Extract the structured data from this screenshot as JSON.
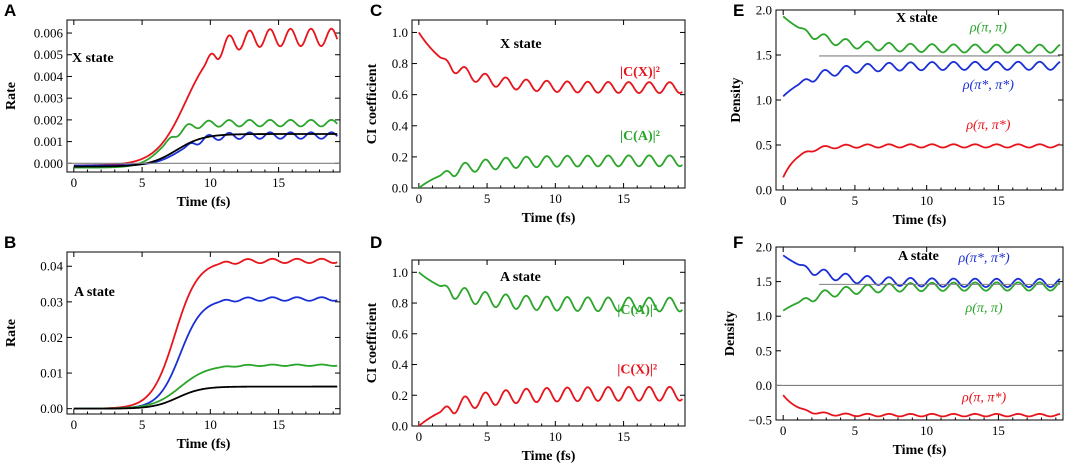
{
  "colors": {
    "red": "#e8141b",
    "green": "#2ba52b",
    "blue": "#1b2fd6",
    "black": "#000000",
    "gray": "#808080"
  },
  "chart_data": [
    {
      "id": "A",
      "type": "line",
      "panel_label": "A",
      "annotation": "X state",
      "xlabel": "Time (fs)",
      "ylabel": "Rate",
      "xlim": [
        -0.5,
        19.5
      ],
      "ylim": [
        -0.0004,
        0.0066
      ],
      "xticks": [
        0,
        5,
        10,
        15
      ],
      "xtick_labels": [
        "0",
        "5",
        "10",
        "15"
      ],
      "yticks": [
        0,
        0.001,
        0.002,
        0.003,
        0.004,
        0.005,
        0.006
      ],
      "ytick_labels": [
        "0.000",
        "0.001",
        "0.002",
        "0.003",
        "0.004",
        "0.005",
        "0.006"
      ],
      "series": [
        {
          "name": "red",
          "color": "red",
          "kind": "sigmoid",
          "y0": -0.0001,
          "y1": 0.0058,
          "x0": 8.2,
          "w": 1.1,
          "amp": 0.0004,
          "period": 1.5,
          "osc_start": 9.5
        },
        {
          "name": "green",
          "color": "green",
          "kind": "sigmoid",
          "y0": -0.0002,
          "y1": 0.00185,
          "x0": 6.6,
          "w": 0.8,
          "amp": 0.00015,
          "period": 1.5,
          "osc_start": 6.5
        },
        {
          "name": "blue",
          "color": "blue",
          "kind": "sigmoid",
          "y0": -0.0001,
          "y1": 0.00128,
          "x0": 7.8,
          "w": 0.9,
          "amp": 0.00015,
          "period": 1.5,
          "osc_start": 8.0
        },
        {
          "name": "black",
          "color": "black",
          "kind": "sigmoid",
          "y0": -0.00015,
          "y1": 0.00135,
          "x0": 7.5,
          "w": 1.0,
          "amp": 0.0,
          "period": 1.5,
          "osc_start": 0
        },
        {
          "name": "zero",
          "color": "gray",
          "kind": "hline",
          "y": 0.0,
          "x_from": -0.5,
          "x_to": 19.5
        }
      ],
      "labels": []
    },
    {
      "id": "B",
      "type": "line",
      "panel_label": "B",
      "annotation": "A state",
      "xlabel": "Time (fs)",
      "ylabel": "Rate",
      "xlim": [
        -0.5,
        19.5
      ],
      "ylim": [
        -0.0015,
        0.044
      ],
      "xticks": [
        0,
        5,
        10,
        15
      ],
      "xtick_labels": [
        "0",
        "5",
        "10",
        "15"
      ],
      "yticks": [
        0,
        0.01,
        0.02,
        0.03,
        0.04
      ],
      "ytick_labels": [
        "0.00",
        "0.01",
        "0.02",
        "0.03",
        "0.04"
      ],
      "series": [
        {
          "name": "red",
          "color": "red",
          "kind": "sigmoid",
          "y0": 0.0,
          "y1": 0.0415,
          "x0": 7.4,
          "w": 0.85,
          "amp": 0.0006,
          "period": 1.8,
          "osc_start": 10.5
        },
        {
          "name": "blue",
          "color": "blue",
          "kind": "sigmoid",
          "y0": 0.0,
          "y1": 0.0308,
          "x0": 7.8,
          "w": 0.8,
          "amp": 0.0005,
          "period": 1.8,
          "osc_start": 10.5
        },
        {
          "name": "green",
          "color": "green",
          "kind": "sigmoid",
          "y0": 0.0,
          "y1": 0.0122,
          "x0": 7.8,
          "w": 1.0,
          "amp": 0.0002,
          "period": 1.8,
          "osc_start": 10.5
        },
        {
          "name": "black",
          "color": "black",
          "kind": "sigmoid",
          "y0": 0.0,
          "y1": 0.0062,
          "x0": 7.6,
          "w": 0.9,
          "amp": 0.0,
          "period": 1.8,
          "osc_start": 0
        }
      ],
      "labels": []
    },
    {
      "id": "C",
      "type": "line",
      "panel_label": "C",
      "annotation": "X state",
      "xlabel": "Time (fs)",
      "ylabel": "CI coefficient",
      "xlim": [
        -0.5,
        19.5
      ],
      "ylim": [
        0,
        1.08
      ],
      "xticks": [
        0,
        5,
        10,
        15
      ],
      "xtick_labels": [
        "0",
        "5",
        "10",
        "15"
      ],
      "yticks": [
        0,
        0.2,
        0.4,
        0.6,
        0.8,
        1.0
      ],
      "ytick_labels": [
        "0.0",
        "0.2",
        "0.4",
        "0.6",
        "0.8",
        "1.0"
      ],
      "series": [
        {
          "name": "|C(X)|²",
          "color": "red",
          "kind": "decay",
          "y0": 1.0,
          "y1": 0.645,
          "tau": 2.6,
          "amp": 0.035,
          "period": 1.5,
          "osc_start": 1.5
        },
        {
          "name": "|C(A)|²",
          "color": "green",
          "kind": "decay",
          "y0": 0.0,
          "y1": 0.175,
          "tau": 2.6,
          "amp": 0.035,
          "period": 1.5,
          "osc_start": 1.5
        }
      ],
      "labels": [
        {
          "text": "|C(X)|²",
          "color": "red",
          "x": 16.2,
          "y": 0.72
        },
        {
          "text": "|C(A)|²",
          "color": "green",
          "x": 16.2,
          "y": 0.31
        }
      ]
    },
    {
      "id": "D",
      "type": "line",
      "panel_label": "D",
      "annotation": "A state",
      "xlabel": "Time (fs)",
      "ylabel": "CI coefficient",
      "xlim": [
        -0.5,
        19.5
      ],
      "ylim": [
        0,
        1.08
      ],
      "xticks": [
        0,
        5,
        10,
        15
      ],
      "xtick_labels": [
        "0",
        "5",
        "10",
        "15"
      ],
      "yticks": [
        0,
        0.2,
        0.4,
        0.6,
        0.8,
        1.0
      ],
      "ytick_labels": [
        "0.0",
        "0.2",
        "0.4",
        "0.6",
        "0.8",
        "1.0"
      ],
      "series": [
        {
          "name": "|C(A)|²",
          "color": "green",
          "kind": "decay",
          "y0": 1.0,
          "y1": 0.79,
          "tau": 2.8,
          "amp": 0.045,
          "period": 1.5,
          "osc_start": 1.5
        },
        {
          "name": "|C(X)|²",
          "color": "red",
          "kind": "decay",
          "y0": 0.0,
          "y1": 0.21,
          "tau": 2.8,
          "amp": 0.045,
          "period": 1.5,
          "osc_start": 1.5
        }
      ],
      "labels": [
        {
          "text": "|C(A)|²",
          "color": "green",
          "x": 16.0,
          "y": 0.73
        },
        {
          "text": "|C(X)|²",
          "color": "red",
          "x": 16.0,
          "y": 0.34
        }
      ]
    },
    {
      "id": "E",
      "type": "line",
      "panel_label": "E",
      "annotation": "X state",
      "xlabel": "Time (fs)",
      "ylabel": "Density",
      "xlim": [
        -0.5,
        19.5
      ],
      "ylim": [
        0,
        2.0
      ],
      "xticks": [
        0,
        5,
        10,
        15
      ],
      "xtick_labels": [
        "0",
        "5",
        "10",
        "15"
      ],
      "yticks": [
        0,
        0.5,
        1.0,
        1.5,
        2.0
      ],
      "ytick_labels": [
        "0.0",
        "0.5",
        "1.0",
        "1.5",
        "2.0"
      ],
      "series": [
        {
          "name": "ρ(π, π)",
          "color": "green",
          "kind": "decay",
          "y0": 1.93,
          "y1": 1.57,
          "tau": 2.5,
          "amp": 0.045,
          "period": 1.5,
          "osc_start": 1.0
        },
        {
          "name": "ρ(π*, π*)",
          "color": "blue",
          "kind": "decay",
          "y0": 1.04,
          "y1": 1.38,
          "tau": 2.2,
          "amp": 0.045,
          "period": 1.5,
          "osc_start": 1.0
        },
        {
          "name": "ρ(π, π*)",
          "color": "red",
          "kind": "decay",
          "y0": 0.14,
          "y1": 0.49,
          "tau": 1.0,
          "amp": 0.018,
          "period": 1.5,
          "osc_start": 1.0
        },
        {
          "name": "ref",
          "color": "gray",
          "kind": "hline",
          "y": 1.49,
          "x_from": 2.5,
          "x_to": 19.3
        }
      ],
      "labels": [
        {
          "text": "ρ(π, π)",
          "color": "green",
          "x": 14.3,
          "y": 1.76
        },
        {
          "text": "ρ(π*, π*)",
          "color": "blue",
          "x": 14.3,
          "y": 1.12
        },
        {
          "text": "ρ(π, π*)",
          "color": "red",
          "x": 14.3,
          "y": 0.68
        }
      ]
    },
    {
      "id": "F",
      "type": "line",
      "panel_label": "F",
      "annotation": "A state",
      "xlabel": "Time (fs)",
      "ylabel": "Density",
      "xlim": [
        -0.5,
        19.5
      ],
      "ylim": [
        -0.5,
        2.0
      ],
      "xticks": [
        0,
        5,
        10,
        15
      ],
      "xtick_labels": [
        "0",
        "5",
        "10",
        "15"
      ],
      "yticks": [
        -0.5,
        0,
        0.5,
        1.0,
        1.5,
        2.0
      ],
      "ytick_labels": [
        "−0.5",
        "0.0",
        "0.5",
        "1.0",
        "1.5",
        "2.0"
      ],
      "series": [
        {
          "name": "ρ(π*, π*)",
          "color": "blue",
          "kind": "decay",
          "y0": 1.88,
          "y1": 1.48,
          "tau": 2.6,
          "amp": 0.06,
          "period": 1.5,
          "osc_start": 1.0
        },
        {
          "name": "ρ(π, π)",
          "color": "green",
          "kind": "decay",
          "y0": 1.08,
          "y1": 1.43,
          "tau": 2.6,
          "amp": 0.06,
          "period": 1.5,
          "osc_start": 1.0
        },
        {
          "name": "ρ(π, π*)",
          "color": "red",
          "kind": "decay",
          "y0": -0.14,
          "y1": -0.43,
          "tau": 1.1,
          "amp": 0.018,
          "period": 1.5,
          "osc_start": 1.0
        },
        {
          "name": "zero",
          "color": "gray",
          "kind": "hline",
          "y": 0.0,
          "x_from": -0.5,
          "x_to": 19.5
        },
        {
          "name": "ref",
          "color": "gray",
          "kind": "hline",
          "y": 1.46,
          "x_from": 2.5,
          "x_to": 19.3
        }
      ],
      "labels": [
        {
          "text": "ρ(π*, π*)",
          "color": "blue",
          "x": 14.0,
          "y": 1.78
        },
        {
          "text": "ρ(π, π)",
          "color": "green",
          "x": 14.0,
          "y": 1.06
        },
        {
          "text": "ρ(π, π*)",
          "color": "red",
          "x": 14.0,
          "y": -0.23
        }
      ]
    }
  ]
}
